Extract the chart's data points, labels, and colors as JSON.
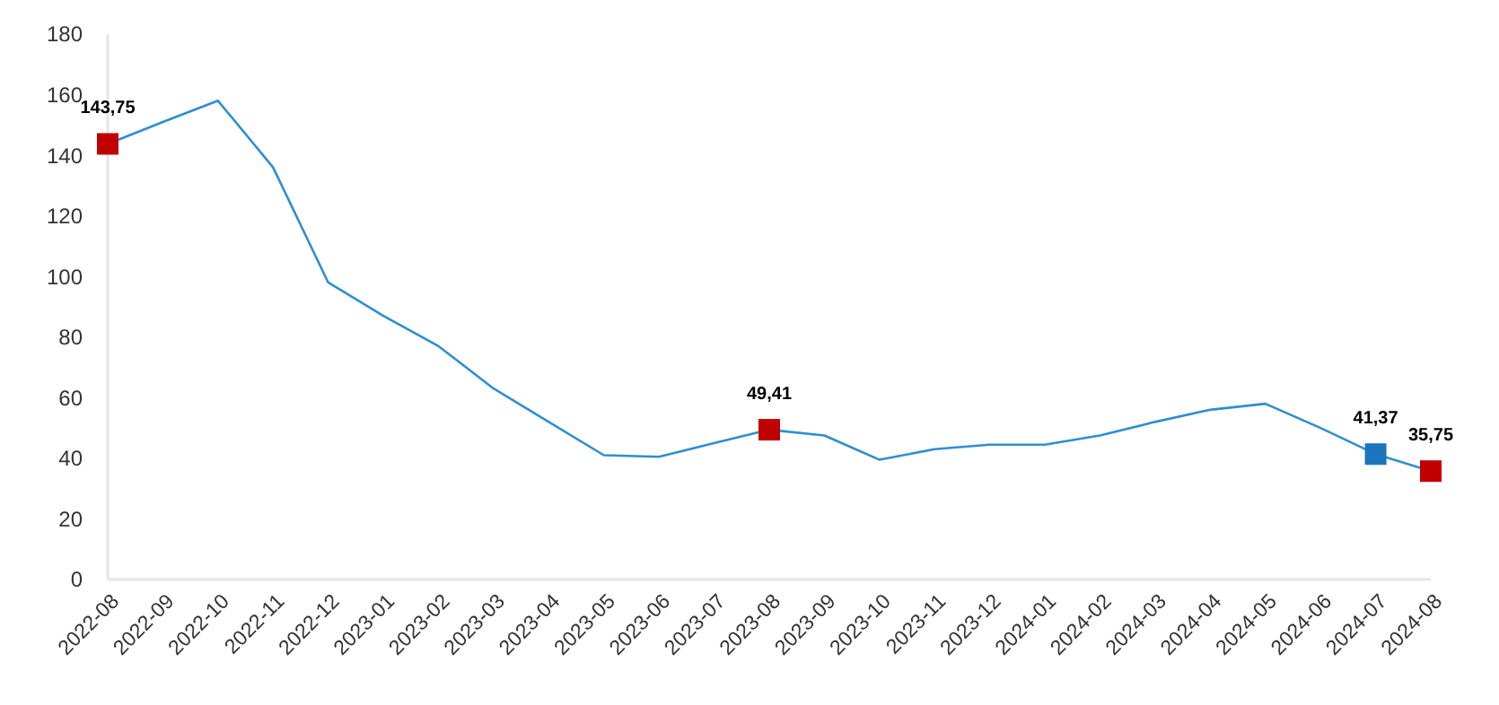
{
  "chart_data": {
    "type": "line",
    "categories": [
      "2022-08",
      "2022-09",
      "2022-10",
      "2022-11",
      "2022-12",
      "2023-01",
      "2023-02",
      "2023-03",
      "2023-04",
      "2023-05",
      "2023-06",
      "2023-07",
      "2023-08",
      "2023-09",
      "2023-10",
      "2023-11",
      "2023-12",
      "2024-01",
      "2024-02",
      "2024-03",
      "2024-04",
      "2024-05",
      "2024-06",
      "2024-07",
      "2024-08"
    ],
    "ylim": [
      0,
      180
    ],
    "yticks": [
      0,
      20,
      40,
      60,
      80,
      100,
      120,
      140,
      160,
      180
    ],
    "series": [
      {
        "color": "#2e8fd0",
        "values": [
          143.75,
          151,
          158,
          136,
          98,
          87,
          77,
          63,
          52,
          41,
          40.5,
          45,
          49.41,
          47.5,
          39.5,
          43,
          44.5,
          44.5,
          47.5,
          52,
          56,
          58,
          50,
          41.37,
          35.75
        ]
      },
      {
        "type": "scatter",
        "marker": "square",
        "values": [
          143.75,
          null,
          null,
          null,
          null,
          null,
          null,
          null,
          null,
          null,
          null,
          null,
          49.41,
          null,
          null,
          null,
          null,
          null,
          null,
          null,
          null,
          null,
          null,
          41.37,
          35.75
        ],
        "colors": [
          "#c00000",
          null,
          null,
          null,
          null,
          null,
          null,
          null,
          null,
          null,
          null,
          null,
          "#c00000",
          null,
          null,
          null,
          null,
          null,
          null,
          null,
          null,
          null,
          null,
          "#1b75bc",
          "#c00000"
        ],
        "value_labels": [
          "143,75",
          null,
          null,
          null,
          null,
          null,
          null,
          null,
          null,
          null,
          null,
          null,
          "49,41",
          null,
          null,
          null,
          null,
          null,
          null,
          null,
          null,
          null,
          null,
          "41,37",
          "35,75"
        ]
      }
    ]
  }
}
